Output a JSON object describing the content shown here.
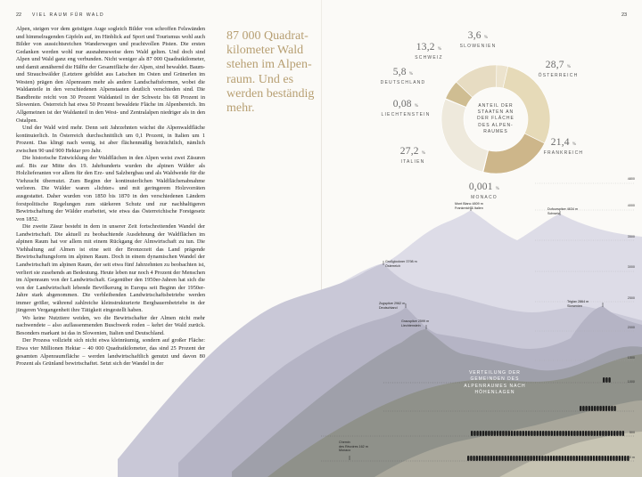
{
  "header": {
    "left_page": "22",
    "left_title": "VIEL RAUM FÜR WALD",
    "right_page": "23"
  },
  "body_text": [
    "Alpen, steigen vor dem geistigen Auge sogleich Bilder von schroffen Felswänden und himmelragenden Gipfeln auf, im Hinblick auf Sport und Tourismus wohl auch Bilder von aussichtsreichen Wanderwegen und prachtvollen Pisten. Die ersten Gedanken werden wohl nur ausnahmsweise dem Wald gelten. Und doch sind Alpen und Wald ganz eng verbunden. Nicht weniger als 87 000 Quadratkilometer, und damit annähernd die Hälfte der Gesamtfläche der Alpen, sind bewaldet. Baum- und Strauchwälder (Letztere gebildet aus Latschen im Osten und Grünerlen im Westen) prägen den Alpenraum mehr als andere Landschaftsformen, wobei die Waldanteile in den verschiedenen Alpenstaaten deutlich verschieden sind. Die Bandbreite reicht von 30 Prozent Waldanteil in der Schweiz bis 68 Prozent in Slowenien. Österreich hat etwa 50 Prozent bewaldete Fläche im Alpenbereich. Im Allgemeinen ist der Waldanteil in den West- und Zentralalpen niedriger als in den Ostalpen.",
    "Und der Wald wird mehr. Denn seit Jahrzehnten wächst die Alpenwaldfläche kontinuierlich. In Österreich durchschnittlich um 0,1 Prozent, in Italien um 1 Prozent. Das klingt nach wenig, ist aber flächenmäßig beträchtlich, nämlich zwischen 90 und 900 Hektar pro Jahr.",
    "Die historische Entwicklung der Waldflächen in den Alpen weist zwei Zäsuren auf. Bis zur Mitte des 19. Jahrhunderts wurden die alpinen Wälder als Holzlieferanten vor allem für den Erz- und Salzbergbau und als Waldweide für die Viehzucht übernutzt. Zum Beginn der kontinuierlichen Waldflächenabnahme verloren. Die Wälder waren »lichter« und mit geringerem Holzvorräten ausgestattet. Daher wurden von 1850 bis 1870 in den verschiedenen Ländern forstpolitische Regelungen zum stärkeren Schutz und zur nachhaltigeren Bewirtschaftung der Wälder erarbeitet, wie etwa das Österreichische Forstgesetz von 1852.",
    "Die zweite Zäsur besteht in dem in unserer Zeit fortschreitenden Wandel der Landwirtschaft. Die aktuell zu beobachtende Ausdehnung der Waldflächen im alpinen Raum hat vor allem mit einem Rückgang der Almwirtschaft zu tun. Die Viehhaltung auf Almen ist eine seit der Bronzezeit das Land prägende Bewirtschaftungsform im alpinen Raum. Doch in einem dynamischen Wandel der Landwirtschaft im alpinen Raum, der seit etwa fünf Jahrzehnten zu beobachten ist, verliert sie zusehends an Bedeutung. Heute leben nur noch 4 Prozent der Menschen im Alpenraum von der Landwirtschaft. Gegenüber den 1950er-Jahren hat sich die von der Landwirtschaft lebende Bevölkerung in Europa seit Beginn der 1950er-Jahre stark abgenommen. Die verbleibenden Landwirtschaftsbetriebe werden immer größer, während zahlreiche kleinstrukturierte Bergbauernbetriebe in der jüngeren Vergangenheit ihre Tätigkeit eingestellt haben.",
    "Wo keine Nutztiere weiden, wo die Bewirtschafter der Almen nicht mehr nachwendete – also auflassenmenden Buschwerk roden – kehrt der Wald zurück. Besonders markant ist das in Slowenien, Italien und Deutschland.",
    "Der Prozess vollzieht sich nicht etwa kleinräumig, sondern auf großer Fläche: Etwa vier Millionen Hektar – 40 000 Quadratkilometer, das sind 25 Prozent der gesamten Alpenraumfläche – werden landwirtschaftlich genutzt und davon 80 Prozent als Grünland bewirtschaftet. Setzt sich der Wandel in der"
  ],
  "pull_quote": "87 000 Quadrat­kilometer Wald stehen im Alpen­raum. Und es werden beständig mehr.",
  "donut": {
    "center_label": [
      "ANTEIL DER",
      "STAATEN AN",
      "DER FLÄCHE",
      "DES ALPEN-",
      "RAUMES"
    ],
    "unit": "%",
    "colors": [
      "#ece3cd",
      "#e6dab8",
      "#cdb68a",
      "#d9c8a2",
      "#eee9dc",
      "#e0d6bd",
      "#cfbd92",
      "#e7dcc2"
    ],
    "slices": [
      {
        "name": "SLOWENIEN",
        "value": 3.6,
        "label": "3,6"
      },
      {
        "name": "ÖSTERREICH",
        "value": 28.7,
        "label": "28,7"
      },
      {
        "name": "FRANKREICH",
        "value": 21.4,
        "label": "21,4"
      },
      {
        "name": "MONACO",
        "value": 0.001,
        "label": "0,001"
      },
      {
        "name": "ITALIEN",
        "value": 27.2,
        "label": "27,2"
      },
      {
        "name": "LIECHTENSTEIN",
        "value": 0.08,
        "label": "0,08"
      },
      {
        "name": "DEUTSCHLAND",
        "value": 5.8,
        "label": "5,8"
      },
      {
        "name": "SCHWEIZ",
        "value": 13.2,
        "label": "13,2"
      }
    ]
  },
  "peaks": [
    {
      "id": "montblanc",
      "text": "Mont Blanc 4809 m\nFrankreich & Italien"
    },
    {
      "id": "dufour",
      "text": "Dufourspitze 4634 m\nSchweiz"
    },
    {
      "id": "grossglockner",
      "text": "Großglockner 3798 m\nÖsterreich"
    },
    {
      "id": "zugspitze",
      "text": "Zugspitze 2962 m\nDeutschland"
    },
    {
      "id": "grauspitze",
      "text": "Grauspitze 2599 m\nLiechtenstein"
    },
    {
      "id": "triglav",
      "text": "Triglav 2864 m\nSlowenien"
    },
    {
      "id": "chiens",
      "text": "Chemin\ndes Révoires 162 m\nMonaco"
    }
  ],
  "elevation_ticks": [
    "4800",
    "4000",
    "3500",
    "3000",
    "2500",
    "2000",
    "1500",
    "1000",
    "500",
    "0 m"
  ],
  "legend_title": [
    "VERTEILUNG DER",
    "GEMEINDEN DES",
    "ALPENRAUMES NACH",
    "HÖHENLAGEN"
  ],
  "mountain_colors": [
    "#dcdbe6",
    "#c9c8d6",
    "#b5b3c4",
    "#9e9fa9",
    "#8e8f88",
    "#a8a69a",
    "#c6c3b2"
  ]
}
